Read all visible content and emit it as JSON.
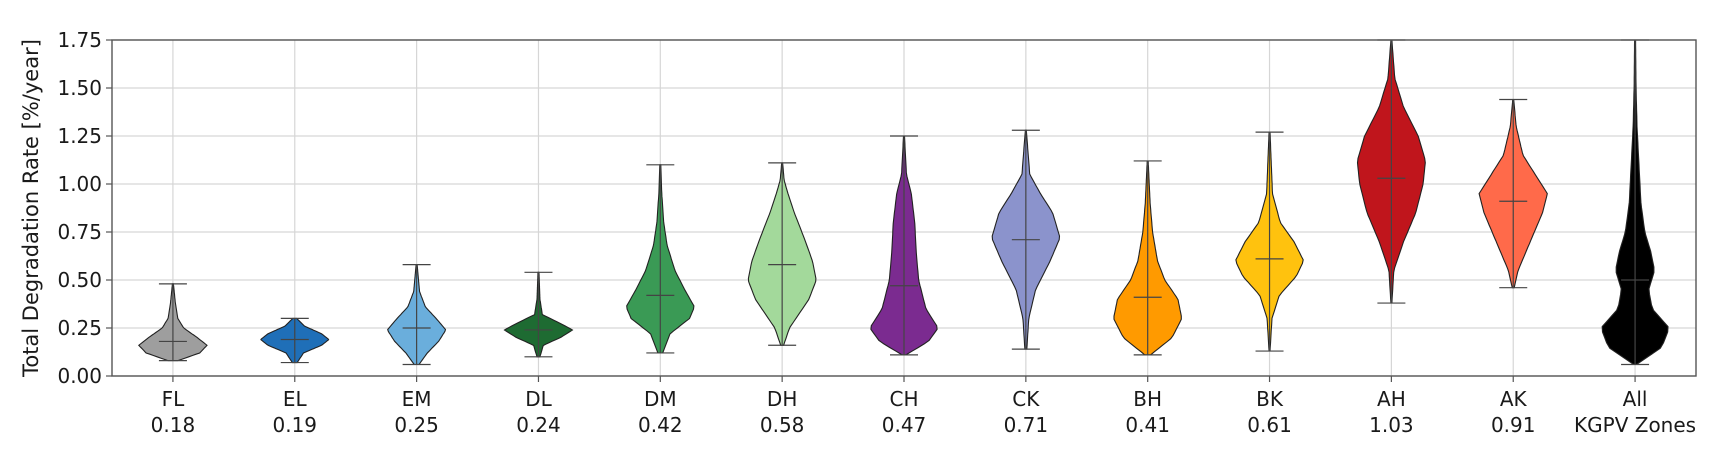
{
  "chart_data": {
    "type": "violin",
    "title": "",
    "xlabel": "",
    "ylabel": "Total Degradation Rate [%/year]",
    "ylim": [
      0,
      1.75
    ],
    "yticks": [
      "0.00",
      "0.25",
      "0.50",
      "0.75",
      "1.00",
      "1.25",
      "1.50",
      "1.75"
    ],
    "grid": true,
    "categories": [
      {
        "label": "FL",
        "value": "0.18",
        "median": 0.18,
        "min": 0.08,
        "max": 0.48,
        "color": "#9e9e9e",
        "profile": [
          [
            0.08,
            0.1
          ],
          [
            0.12,
            0.55
          ],
          [
            0.16,
            0.7
          ],
          [
            0.2,
            0.5
          ],
          [
            0.25,
            0.22
          ],
          [
            0.3,
            0.1
          ],
          [
            0.38,
            0.05
          ],
          [
            0.48,
            0.01
          ]
        ]
      },
      {
        "label": "EL",
        "value": "0.19",
        "median": 0.19,
        "min": 0.07,
        "max": 0.3,
        "color": "#1f6fb8",
        "profile": [
          [
            0.07,
            0.05
          ],
          [
            0.12,
            0.18
          ],
          [
            0.16,
            0.55
          ],
          [
            0.19,
            0.7
          ],
          [
            0.22,
            0.55
          ],
          [
            0.26,
            0.2
          ],
          [
            0.3,
            0.04
          ]
        ]
      },
      {
        "label": "EM",
        "value": "0.25",
        "median": 0.25,
        "min": 0.06,
        "max": 0.58,
        "color": "#6aaedc",
        "profile": [
          [
            0.06,
            0.05
          ],
          [
            0.12,
            0.22
          ],
          [
            0.18,
            0.45
          ],
          [
            0.24,
            0.6
          ],
          [
            0.3,
            0.4
          ],
          [
            0.36,
            0.18
          ],
          [
            0.44,
            0.06
          ],
          [
            0.58,
            0.01
          ]
        ]
      },
      {
        "label": "DL",
        "value": "0.24",
        "median": 0.24,
        "min": 0.1,
        "max": 0.54,
        "color": "#1e6b32",
        "profile": [
          [
            0.1,
            0.03
          ],
          [
            0.16,
            0.1
          ],
          [
            0.2,
            0.45
          ],
          [
            0.24,
            0.7
          ],
          [
            0.28,
            0.4
          ],
          [
            0.32,
            0.08
          ],
          [
            0.4,
            0.03
          ],
          [
            0.54,
            0.01
          ]
        ]
      },
      {
        "label": "DM",
        "value": "0.42",
        "median": 0.42,
        "min": 0.12,
        "max": 1.1,
        "color": "#3a9a55",
        "profile": [
          [
            0.12,
            0.05
          ],
          [
            0.22,
            0.2
          ],
          [
            0.3,
            0.6
          ],
          [
            0.36,
            0.7
          ],
          [
            0.45,
            0.5
          ],
          [
            0.55,
            0.3
          ],
          [
            0.68,
            0.14
          ],
          [
            0.8,
            0.07
          ],
          [
            0.95,
            0.03
          ],
          [
            1.1,
            0.01
          ]
        ]
      },
      {
        "label": "DH",
        "value": "0.58",
        "median": 0.58,
        "min": 0.16,
        "max": 1.11,
        "color": "#a3d99b",
        "profile": [
          [
            0.16,
            0.03
          ],
          [
            0.25,
            0.15
          ],
          [
            0.4,
            0.55
          ],
          [
            0.5,
            0.7
          ],
          [
            0.6,
            0.62
          ],
          [
            0.72,
            0.45
          ],
          [
            0.85,
            0.25
          ],
          [
            0.95,
            0.12
          ],
          [
            1.02,
            0.04
          ],
          [
            1.11,
            0.01
          ]
        ]
      },
      {
        "label": "CH",
        "value": "0.47",
        "median": 0.47,
        "min": 0.11,
        "max": 1.25,
        "color": "#7b2b90",
        "profile": [
          [
            0.11,
            0.04
          ],
          [
            0.18,
            0.5
          ],
          [
            0.25,
            0.7
          ],
          [
            0.35,
            0.45
          ],
          [
            0.5,
            0.3
          ],
          [
            0.65,
            0.25
          ],
          [
            0.8,
            0.22
          ],
          [
            0.95,
            0.15
          ],
          [
            1.05,
            0.05
          ],
          [
            1.25,
            0.01
          ]
        ]
      },
      {
        "label": "CK",
        "value": "0.71",
        "median": 0.71,
        "min": 0.14,
        "max": 1.28,
        "color": "#8b93cc",
        "profile": [
          [
            0.14,
            0.02
          ],
          [
            0.3,
            0.06
          ],
          [
            0.45,
            0.2
          ],
          [
            0.6,
            0.5
          ],
          [
            0.72,
            0.7
          ],
          [
            0.85,
            0.55
          ],
          [
            0.95,
            0.3
          ],
          [
            1.05,
            0.08
          ],
          [
            1.28,
            0.01
          ]
        ]
      },
      {
        "label": "BH",
        "value": "0.41",
        "median": 0.41,
        "min": 0.11,
        "max": 1.12,
        "color": "#ff9a00",
        "profile": [
          [
            0.11,
            0.06
          ],
          [
            0.2,
            0.5
          ],
          [
            0.3,
            0.7
          ],
          [
            0.4,
            0.62
          ],
          [
            0.5,
            0.35
          ],
          [
            0.6,
            0.2
          ],
          [
            0.75,
            0.1
          ],
          [
            0.9,
            0.05
          ],
          [
            1.12,
            0.01
          ]
        ]
      },
      {
        "label": "BK",
        "value": "0.61",
        "median": 0.61,
        "min": 0.13,
        "max": 1.27,
        "color": "#ffc20e",
        "profile": [
          [
            0.13,
            0.01
          ],
          [
            0.3,
            0.05
          ],
          [
            0.42,
            0.2
          ],
          [
            0.52,
            0.55
          ],
          [
            0.6,
            0.7
          ],
          [
            0.7,
            0.5
          ],
          [
            0.8,
            0.22
          ],
          [
            0.95,
            0.06
          ],
          [
            1.27,
            0.01
          ]
        ]
      },
      {
        "label": "AH",
        "value": "1.03",
        "median": 1.03,
        "min": 0.38,
        "max": 1.75,
        "color": "#c0151c",
        "profile": [
          [
            0.38,
            0.01
          ],
          [
            0.55,
            0.05
          ],
          [
            0.7,
            0.25
          ],
          [
            0.85,
            0.5
          ],
          [
            1.0,
            0.65
          ],
          [
            1.12,
            0.7
          ],
          [
            1.25,
            0.55
          ],
          [
            1.4,
            0.25
          ],
          [
            1.55,
            0.07
          ],
          [
            1.75,
            0.01
          ]
        ]
      },
      {
        "label": "AK",
        "value": "0.91",
        "median": 0.91,
        "min": 0.46,
        "max": 1.44,
        "color": "#ff6a4a",
        "profile": [
          [
            0.46,
            0.02
          ],
          [
            0.55,
            0.1
          ],
          [
            0.7,
            0.35
          ],
          [
            0.85,
            0.6
          ],
          [
            0.95,
            0.7
          ],
          [
            1.05,
            0.45
          ],
          [
            1.15,
            0.2
          ],
          [
            1.3,
            0.06
          ],
          [
            1.44,
            0.01
          ]
        ]
      },
      {
        "label": "All",
        "sublabel": "KGPV Zones",
        "value": "",
        "median": 0.5,
        "min": 0.06,
        "max": 1.75,
        "color": "#000000",
        "profile": [
          [
            0.06,
            0.03
          ],
          [
            0.15,
            0.55
          ],
          [
            0.25,
            0.7
          ],
          [
            0.35,
            0.35
          ],
          [
            0.45,
            0.28
          ],
          [
            0.55,
            0.4
          ],
          [
            0.65,
            0.32
          ],
          [
            0.75,
            0.2
          ],
          [
            0.9,
            0.12
          ],
          [
            1.1,
            0.08
          ],
          [
            1.3,
            0.04
          ],
          [
            1.5,
            0.02
          ],
          [
            1.75,
            0.01
          ]
        ]
      }
    ]
  }
}
